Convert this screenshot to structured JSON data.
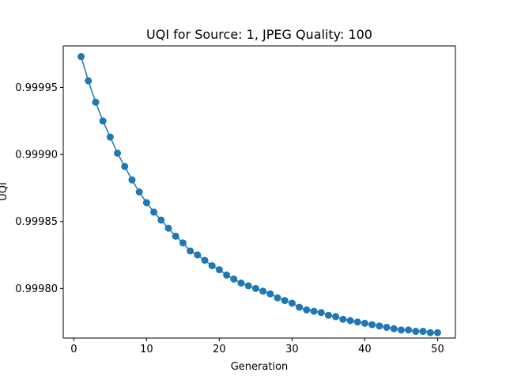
{
  "chart_data": {
    "type": "line",
    "title": "UQI for Source: 1, JPEG Quality: 100",
    "xlabel": "Generation",
    "ylabel": "UQI",
    "xlim": [
      -1.45,
      52.45
    ],
    "ylim": [
      0.999763,
      0.999981
    ],
    "xticks": [
      0,
      10,
      20,
      30,
      40,
      50
    ],
    "yticks": [
      0.9998,
      0.99985,
      0.9999,
      0.99995
    ],
    "ytick_labels": [
      "0.99980",
      "0.99985",
      "0.99990",
      "0.99995"
    ],
    "grid": false,
    "color": "#1f77b4",
    "marker": "circle",
    "series": [
      {
        "x": [
          1,
          2,
          3,
          4,
          5,
          6,
          7,
          8,
          9,
          10,
          11,
          12,
          13,
          14,
          15,
          16,
          17,
          18,
          19,
          20,
          21,
          22,
          23,
          24,
          25,
          26,
          27,
          28,
          29,
          30,
          31,
          32,
          33,
          34,
          35,
          36,
          37,
          38,
          39,
          40,
          41,
          42,
          43,
          44,
          45,
          46,
          47,
          48,
          49,
          50
        ],
        "y": [
          0.999973,
          0.999955,
          0.999939,
          0.999925,
          0.999913,
          0.999901,
          0.999891,
          0.999881,
          0.999872,
          0.999864,
          0.999857,
          0.999851,
          0.999845,
          0.999839,
          0.999834,
          0.999828,
          0.999825,
          0.999821,
          0.999817,
          0.999814,
          0.99981,
          0.999807,
          0.999804,
          0.999802,
          0.9998,
          0.999798,
          0.999796,
          0.999793,
          0.999791,
          0.999789,
          0.999786,
          0.999784,
          0.999783,
          0.999782,
          0.99978,
          0.999779,
          0.999777,
          0.999776,
          0.999775,
          0.999774,
          0.999773,
          0.999772,
          0.999771,
          0.99977,
          0.999769,
          0.999769,
          0.999768,
          0.999768,
          0.999767,
          0.999767
        ]
      }
    ]
  }
}
